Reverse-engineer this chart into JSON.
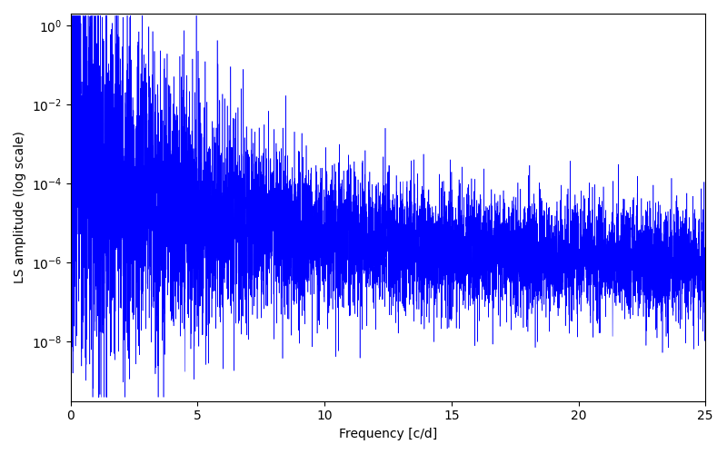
{
  "title": "",
  "xlabel": "Frequency [c/d]",
  "ylabel": "LS amplitude (log scale)",
  "xlim": [
    0,
    25
  ],
  "ylim_min_log": -9.5,
  "ylim_max_log": 0.3,
  "line_color": "#0000ff",
  "linewidth": 0.4,
  "figsize": [
    8.0,
    5.0
  ],
  "dpi": 100,
  "freq_max": 25.0,
  "n_points": 8000,
  "seed": 7
}
